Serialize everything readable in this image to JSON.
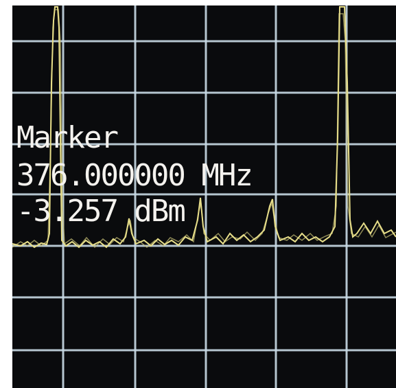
{
  "marker": {
    "label": "Marker",
    "frequency": "376.000000 MHz",
    "level": "-3.257 dBm"
  }
}
